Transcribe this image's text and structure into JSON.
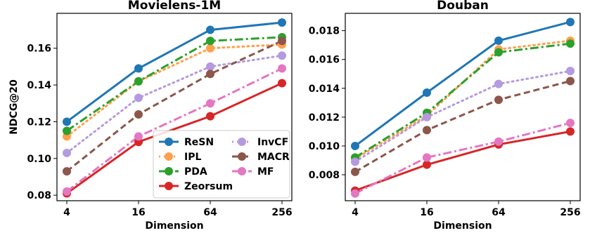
{
  "chart_data": [
    {
      "type": "line",
      "title": "Movielens-1M",
      "xlabel": "Dimension",
      "ylabel": "NDCG@20",
      "x": [
        "4",
        "16",
        "64",
        "256"
      ],
      "ylim": [
        0.077,
        0.179
      ],
      "yticks": [
        "0.08",
        "0.10",
        "0.12",
        "0.14",
        "0.16"
      ],
      "ytick_values": [
        0.08,
        0.1,
        0.12,
        0.14,
        0.16
      ],
      "grid": false,
      "legend": "lower-right",
      "series": [
        {
          "name": "ReSN",
          "color": "#1f77b4",
          "style": "solid",
          "values": [
            0.12,
            0.149,
            0.17,
            0.174
          ]
        },
        {
          "name": "IPL",
          "color": "#ffa04d",
          "style": "dotted",
          "values": [
            0.112,
            0.142,
            0.16,
            0.162
          ]
        },
        {
          "name": "PDA",
          "color": "#2ca02c",
          "style": "dashdot",
          "values": [
            0.115,
            0.142,
            0.164,
            0.166
          ]
        },
        {
          "name": "Zeorsum",
          "color": "#d62728",
          "style": "solid",
          "values": [
            0.081,
            0.109,
            0.123,
            0.141
          ]
        },
        {
          "name": "InvCF",
          "color": "#b49ae0",
          "style": "dotted",
          "values": [
            0.103,
            0.133,
            0.15,
            0.156
          ]
        },
        {
          "name": "MACR",
          "color": "#8c564b",
          "style": "dashed",
          "values": [
            0.093,
            0.124,
            0.146,
            0.164
          ]
        },
        {
          "name": "MF",
          "color": "#e377c2",
          "style": "dashdot",
          "values": [
            0.082,
            0.112,
            0.13,
            0.149
          ]
        }
      ]
    },
    {
      "type": "line",
      "title": "Douban",
      "xlabel": "Dimension",
      "ylabel": "",
      "x": [
        "4",
        "16",
        "64",
        "256"
      ],
      "ylim": [
        0.0062,
        0.0192
      ],
      "yticks": [
        "0.008",
        "0.010",
        "0.012",
        "0.014",
        "0.016",
        "0.018"
      ],
      "ytick_values": [
        0.008,
        0.01,
        0.012,
        0.014,
        0.016,
        0.018
      ],
      "grid": false,
      "legend": "none",
      "series": [
        {
          "name": "ReSN",
          "color": "#1f77b4",
          "style": "solid",
          "values": [
            0.01,
            0.0137,
            0.0173,
            0.0186
          ]
        },
        {
          "name": "IPL",
          "color": "#ffa04d",
          "style": "dotted",
          "values": [
            0.0091,
            0.0121,
            0.0167,
            0.0173
          ]
        },
        {
          "name": "PDA",
          "color": "#2ca02c",
          "style": "dashdot",
          "values": [
            0.0092,
            0.0123,
            0.0165,
            0.0171
          ]
        },
        {
          "name": "Zeorsum",
          "color": "#d62728",
          "style": "solid",
          "values": [
            0.0069,
            0.0087,
            0.0101,
            0.011
          ]
        },
        {
          "name": "InvCF",
          "color": "#b49ae0",
          "style": "dotted",
          "values": [
            0.0089,
            0.012,
            0.0143,
            0.0152
          ]
        },
        {
          "name": "MACR",
          "color": "#8c564b",
          "style": "dashed",
          "values": [
            0.0082,
            0.0111,
            0.0132,
            0.0145
          ]
        },
        {
          "name": "MF",
          "color": "#e377c2",
          "style": "dashdot",
          "values": [
            0.0067,
            0.0092,
            0.0103,
            0.0116
          ]
        }
      ]
    }
  ]
}
